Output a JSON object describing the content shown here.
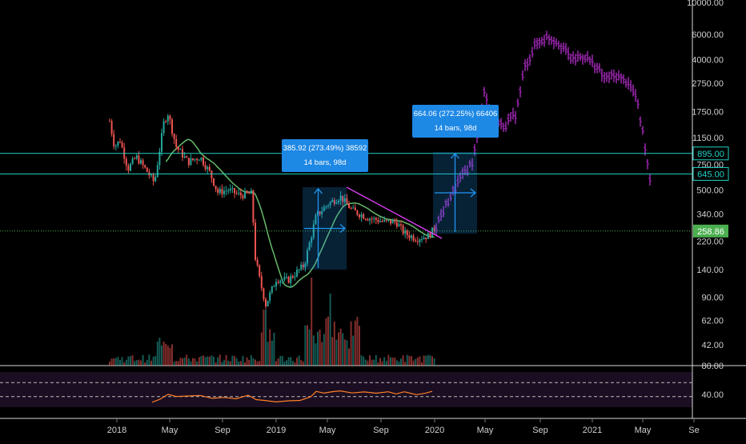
{
  "chart_data": {
    "type": "candlestick",
    "y_scale": "log",
    "y_ticks": [
      "10000.00",
      "6000.00",
      "4000.00",
      "2750.00",
      "1750.00",
      "1150.00",
      "750.00",
      "500.00",
      "340.00",
      "220.00",
      "140.00",
      "90.00",
      "62.00",
      "42.00"
    ],
    "y_tick_values": [
      10000,
      6000,
      4000,
      2750,
      1750,
      1150,
      750,
      500,
      340,
      220,
      140,
      90,
      62,
      42
    ],
    "x_ticks": [
      "2018",
      "May",
      "Sep",
      "2019",
      "May",
      "Sep",
      "2020",
      "May",
      "Sep",
      "2021",
      "May",
      "Se"
    ],
    "horizontal_levels": [
      {
        "label": "895.00",
        "value": 895,
        "color": "#22d3c5"
      },
      {
        "label": "645.00",
        "value": 645,
        "color": "#22d3c5"
      }
    ],
    "current_price": {
      "label": "258.86",
      "value": 258.86,
      "color": "#4caf50"
    },
    "measurements": [
      {
        "line1": "385.92 (273.49%) 38592",
        "line2": "14 bars, 98d"
      },
      {
        "line1": "664.06 (272.25%) 66406",
        "line2": "14 bars, 98d"
      }
    ],
    "rsi": {
      "ticks": [
        "80.00",
        "40.00"
      ],
      "upper_band": 70,
      "lower_band": 30
    },
    "colors": {
      "up": "#26a69a",
      "down": "#ef5350",
      "projection": "#9c27b0",
      "moving_average": "#66bb6a",
      "trendline": "#e040fb",
      "rsi_line": "#ff7f27",
      "measure_box": "#2196f3"
    }
  }
}
